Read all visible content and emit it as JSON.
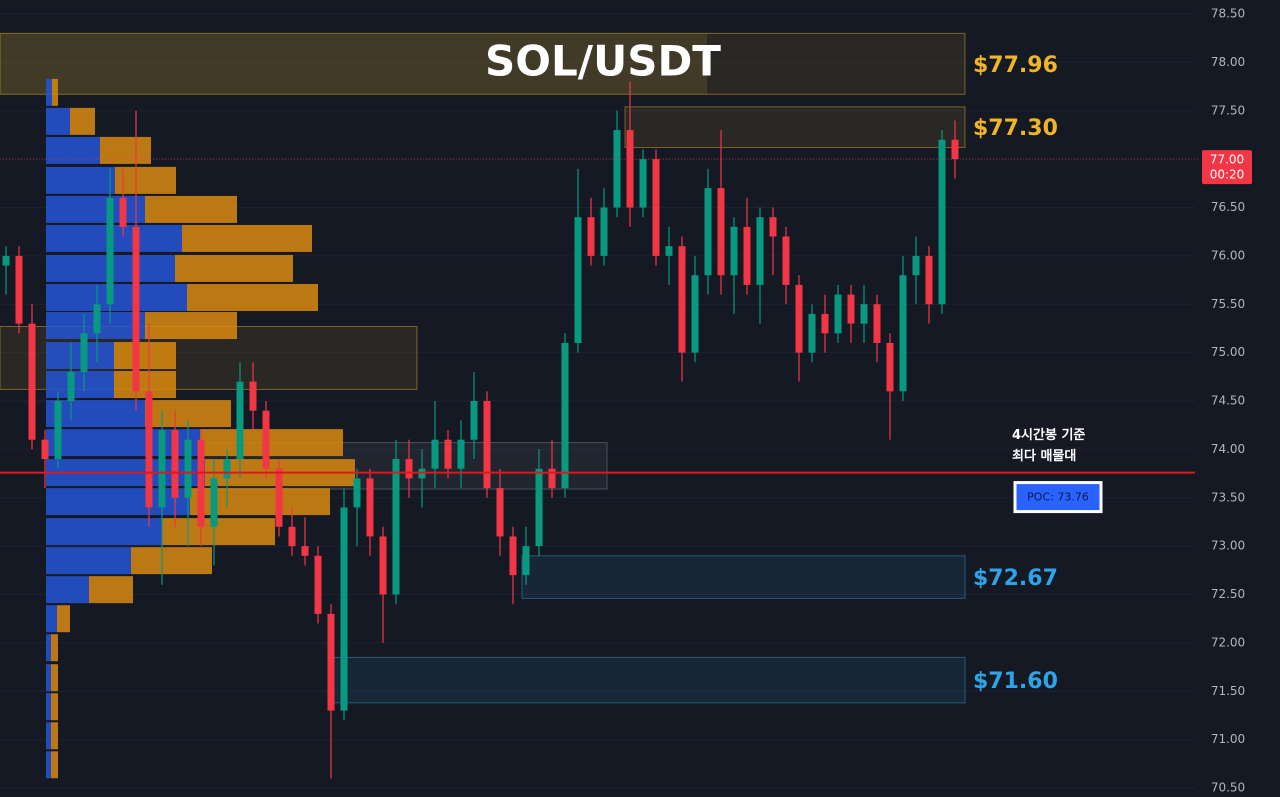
{
  "chart_data": {
    "type": "candlestick",
    "title": "SOL/USDT",
    "ylim": [
      70.5,
      78.5
    ],
    "yticks": [
      {
        "value": 78.5,
        "label": "78.50"
      },
      {
        "value": 78,
        "label": "78.00"
      },
      {
        "value": 77.5,
        "label": "77.50"
      },
      {
        "value": 77,
        "label": "77.00"
      },
      {
        "value": 76.5,
        "label": "76.50"
      },
      {
        "value": 76,
        "label": "76.00"
      },
      {
        "value": 75.5,
        "label": "75.50"
      },
      {
        "value": 75,
        "label": "75.00"
      },
      {
        "value": 74.5,
        "label": "74.50"
      },
      {
        "value": 74,
        "label": "74.00"
      },
      {
        "value": 73.5,
        "label": "73.50"
      },
      {
        "value": 73,
        "label": "73.00"
      },
      {
        "value": 72.5,
        "label": "72.50"
      },
      {
        "value": 72,
        "label": "72.00"
      },
      {
        "value": 71.5,
        "label": "71.50"
      },
      {
        "value": 71,
        "label": "71.00"
      },
      {
        "value": 70.5,
        "label": "70.50"
      }
    ],
    "up_color": "#089981",
    "down_color": "#f23645",
    "open": [
      75.9,
      76.0,
      75.3,
      74.1,
      73.9,
      74.5,
      74.8,
      75.2,
      75.5,
      76.6,
      76.3,
      74.6,
      73.4,
      74.2,
      73.5,
      74.1,
      73.2,
      73.7,
      73.9,
      74.7,
      74.4,
      73.8,
      73.2,
      73.0,
      72.9,
      72.3,
      71.3,
      73.4,
      73.7,
      73.1,
      72.5,
      73.9,
      73.7,
      73.8,
      74.1,
      73.8,
      74.1,
      74.5,
      73.6,
      73.1,
      72.7,
      73.0,
      73.8,
      73.6,
      75.1,
      76.4,
      76.0,
      76.5,
      77.3,
      76.5,
      77.0,
      76.0,
      76.1,
      75.0,
      75.8,
      76.7,
      75.8,
      76.3,
      75.7,
      76.4,
      76.2,
      75.7,
      75.0,
      75.4,
      75.2,
      75.6,
      75.3,
      75.5,
      75.1,
      74.6,
      75.8,
      76.0,
      75.5,
      77.2
    ],
    "high": [
      76.1,
      76.1,
      75.5,
      74.2,
      74.6,
      75.1,
      75.4,
      75.7,
      76.9,
      76.9,
      77.5,
      75.3,
      74.4,
      74.4,
      74.3,
      74.2,
      73.9,
      74.0,
      74.9,
      74.9,
      74.5,
      73.9,
      73.4,
      73.3,
      73.0,
      72.4,
      73.6,
      73.8,
      73.8,
      73.2,
      74.1,
      74.1,
      74.0,
      74.5,
      74.2,
      74.3,
      74.8,
      74.6,
      73.8,
      73.2,
      73.2,
      74.0,
      74.1,
      75.2,
      76.9,
      76.6,
      76.7,
      77.5,
      77.8,
      77.1,
      77.1,
      76.3,
      76.2,
      76.0,
      76.9,
      77.3,
      76.4,
      76.6,
      76.5,
      76.5,
      76.3,
      75.8,
      75.5,
      75.6,
      75.7,
      75.7,
      75.7,
      75.6,
      75.2,
      76.0,
      76.2,
      76.1,
      77.3,
      77.4
    ],
    "low": [
      75.6,
      75.2,
      74.0,
      73.6,
      73.8,
      74.3,
      74.6,
      74.9,
      75.3,
      76.2,
      74.4,
      73.2,
      72.6,
      73.2,
      73.0,
      73.0,
      72.8,
      73.4,
      73.7,
      74.2,
      73.7,
      73.1,
      72.9,
      72.8,
      72.2,
      70.6,
      71.2,
      73.0,
      72.9,
      72.0,
      72.4,
      73.5,
      73.4,
      73.6,
      73.7,
      73.6,
      73.9,
      73.5,
      72.9,
      72.4,
      72.6,
      72.9,
      73.5,
      73.5,
      75.0,
      75.9,
      75.9,
      76.4,
      76.3,
      76.4,
      75.9,
      75.7,
      74.7,
      74.9,
      75.6,
      75.6,
      75.4,
      75.6,
      75.3,
      75.8,
      75.5,
      74.7,
      74.9,
      75.0,
      75.1,
      75.1,
      75.1,
      74.9,
      74.1,
      74.5,
      75.5,
      75.3,
      75.4,
      76.8
    ],
    "close": [
      76.0,
      75.3,
      74.1,
      73.9,
      74.5,
      74.8,
      75.2,
      75.5,
      76.6,
      76.3,
      74.6,
      73.4,
      74.2,
      73.5,
      74.1,
      73.2,
      73.7,
      73.9,
      74.7,
      74.4,
      73.8,
      73.2,
      73.0,
      72.9,
      72.3,
      71.3,
      73.4,
      73.7,
      73.1,
      72.5,
      73.9,
      73.7,
      73.8,
      74.1,
      73.8,
      74.1,
      74.5,
      73.6,
      73.1,
      72.7,
      73.0,
      73.8,
      73.6,
      75.1,
      76.4,
      76.0,
      76.5,
      77.3,
      76.5,
      77.0,
      76.0,
      76.1,
      75.0,
      75.8,
      76.7,
      75.8,
      76.3,
      75.7,
      76.4,
      76.2,
      75.7,
      75.0,
      75.4,
      75.2,
      75.6,
      75.3,
      75.5,
      75.1,
      74.6,
      75.8,
      76.0,
      75.5,
      77.2,
      77.0
    ],
    "volume_profile": {
      "levels": [
        77.69,
        77.39,
        77.09,
        76.78,
        76.48,
        76.18,
        75.87,
        75.57,
        75.28,
        74.97,
        74.67,
        74.37,
        74.07,
        73.76,
        73.46,
        73.15,
        72.85,
        72.55,
        72.25,
        71.95,
        71.64,
        71.34,
        71.04,
        70.74
      ],
      "buy_color": "#2455d6",
      "sell_color": "#d98a0f",
      "buy": [
        6,
        24,
        54,
        69,
        99,
        136,
        129,
        141,
        99,
        68,
        68,
        99,
        154,
        159,
        144,
        116,
        85,
        43,
        11,
        5,
        5,
        5,
        5,
        5
      ],
      "sell": [
        6,
        25,
        51,
        61,
        92,
        130,
        118,
        131,
        92,
        62,
        62,
        86,
        143,
        150,
        140,
        113,
        81,
        44,
        13,
        7,
        7,
        7,
        7,
        7
      ]
    },
    "zones": [
      {
        "label": "$77.96",
        "value": 77.96,
        "high": 78.3,
        "low": 77.67,
        "color": "#f0b429"
      },
      {
        "label": "$77.30",
        "value": 77.3,
        "high": 77.54,
        "low": 77.12,
        "color": "#f0b429"
      },
      {
        "label": "$72.67",
        "value": 72.67,
        "high": 72.9,
        "low": 72.46,
        "color": "#2ea3e6"
      },
      {
        "label": "$71.60",
        "value": 71.6,
        "high": 71.85,
        "low": 71.38,
        "color": "#2ea3e6"
      },
      {
        "high": 75.27,
        "low": 74.62,
        "color": "#f0b429"
      },
      {
        "high": 74.07,
        "low": 73.59,
        "color": "#8a8f9c"
      }
    ],
    "poc": {
      "value": 73.76,
      "label": "POC: 73.76",
      "color": "#e01818"
    },
    "poc_note": [
      "4시간봉 기준",
      "최다 매물대"
    ],
    "last_price": {
      "value": 77.0,
      "label": "77.00"
    },
    "countdown": "00:20"
  }
}
